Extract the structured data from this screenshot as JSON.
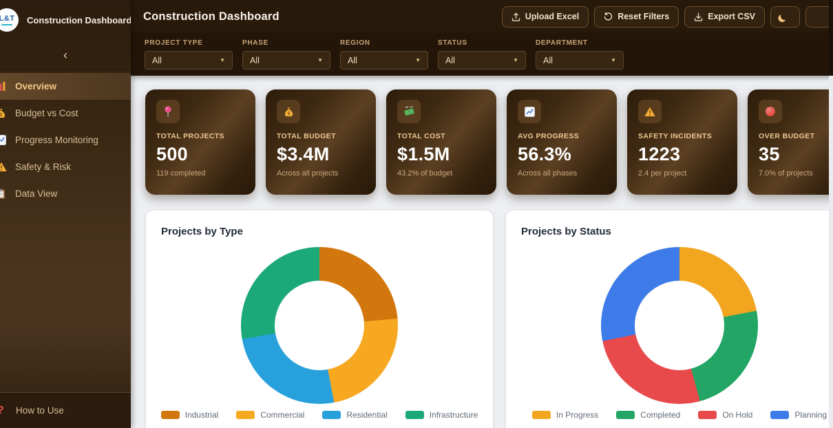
{
  "sidebar": {
    "logo_text": "L&T",
    "title": "Construction Dashboard",
    "collapse_icon": "‹",
    "items": [
      {
        "label": "Overview",
        "icon": "bar-chart-icon",
        "active": true
      },
      {
        "label": "Budget vs Cost",
        "icon": "money-bag-icon",
        "active": false
      },
      {
        "label": "Progress Monitoring",
        "icon": "chart-up-icon",
        "active": false
      },
      {
        "label": "Safety & Risk",
        "icon": "warning-icon",
        "active": false
      },
      {
        "label": "Data View",
        "icon": "clipboard-icon",
        "active": false
      }
    ],
    "footer_item": {
      "label": "How to Use",
      "icon": "question-icon"
    }
  },
  "header": {
    "title": "Construction Dashboard",
    "buttons": [
      {
        "label": "Upload Excel",
        "icon": "upload-icon"
      },
      {
        "label": "Reset Filters",
        "icon": "reset-icon"
      },
      {
        "label": "Export CSV",
        "icon": "download-icon"
      }
    ],
    "theme_toggle_icon": "moon-icon"
  },
  "filters": [
    {
      "label": "PROJECT TYPE",
      "value": "All"
    },
    {
      "label": "PHASE",
      "value": "All"
    },
    {
      "label": "REGION",
      "value": "All"
    },
    {
      "label": "STATUS",
      "value": "All"
    },
    {
      "label": "DEPARTMENT",
      "value": "All"
    }
  ],
  "kpis": [
    {
      "label": "TOTAL PROJECTS",
      "value": "500",
      "sub": "119 completed",
      "icon": "pin-icon"
    },
    {
      "label": "TOTAL BUDGET",
      "value": "$3.4M",
      "sub": "Across all projects",
      "icon": "money-bag-icon"
    },
    {
      "label": "TOTAL COST",
      "value": "$1.5M",
      "sub": "43.2% of budget",
      "icon": "flying-money-icon"
    },
    {
      "label": "AVG PROGRESS",
      "value": "56.3%",
      "sub": "Across all phases",
      "icon": "chart-up-icon"
    },
    {
      "label": "SAFETY INCIDENTS",
      "value": "1223",
      "sub": "2.4 per project",
      "icon": "warning-icon"
    },
    {
      "label": "OVER BUDGET",
      "value": "35",
      "sub": "7.0% of projects",
      "icon": "red-circle-icon"
    }
  ],
  "chart_data": [
    {
      "type": "pie",
      "variant": "donut",
      "title": "Projects by Type",
      "labels": [
        "Industrial",
        "Commercial",
        "Residential",
        "Infrastructure"
      ],
      "values": [
        118,
        117,
        126,
        139
      ],
      "colors": [
        "#d2770e",
        "#f6a821",
        "#28a0dc",
        "#1ca97a"
      ],
      "legend_position": "bottom",
      "total": 500
    },
    {
      "type": "pie",
      "variant": "donut",
      "title": "Projects by Status",
      "labels": [
        "In Progress",
        "Completed",
        "On Hold",
        "Planning"
      ],
      "values": [
        110,
        119,
        130,
        141
      ],
      "colors": [
        "#f2a51f",
        "#23a566",
        "#e8494b",
        "#3d7be8"
      ],
      "legend_position": "bottom",
      "total": 500
    }
  ]
}
